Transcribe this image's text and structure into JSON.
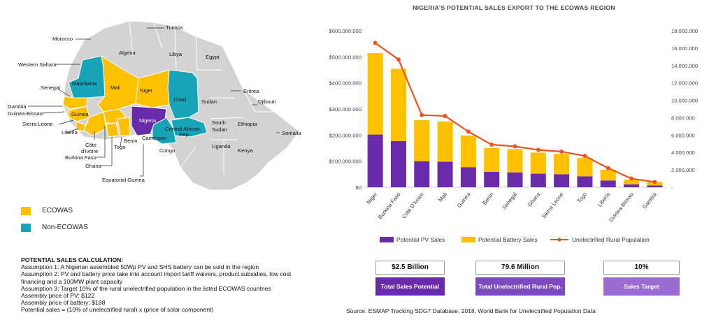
{
  "map": {
    "countries": {
      "morocco": "Morocco",
      "tunisia": "Tunisia",
      "algeria": "Algeria",
      "libya": "Libya",
      "egypt": "Egypt",
      "western_sahara": "Western Sahara",
      "mauritania": "Mauritania",
      "mali": "Mali",
      "niger": "Niger",
      "chad": "Chad",
      "sudan": "Sudan",
      "eritrea": "Eritrea",
      "djibouti": "Djibouti",
      "senegal": "Senegal",
      "gambia": "Gambia",
      "guinea_bissau": "Guinea-Bissau",
      "guinea": "Guinea",
      "sierra_leone": "Sierra Leone",
      "liberia": "Liberia",
      "cote_divoire": "Côte\nd'Ivoire",
      "burkina_faso": "Burkina Faso",
      "ghana": "Ghana",
      "togo": "Togo",
      "benin": "Benin",
      "nigeria": "Nigeria",
      "central_african_rep": "Central African\nRep.",
      "south_sudan": "South\nSudan",
      "ethiopia": "Ethiopia",
      "somalia": "Somalia",
      "cameroon": "Cameroon",
      "congo": "Congo",
      "uganda": "Uganda",
      "kenya": "Kenya",
      "equatorial_guinea": "Equatorial Guinea"
    },
    "legend": [
      {
        "label": "ECOWAS",
        "color": "#FFC000"
      },
      {
        "label": "Non-ECOWAS",
        "color": "#18A4B8"
      }
    ],
    "colors": {
      "ecowas": "#FFC000",
      "non_ecowas": "#18A4B8",
      "nigeria": "#6A2BAA",
      "other": "#D3D3D3"
    }
  },
  "calculation": {
    "title": "POTENTIAL SALES CALCULATION:",
    "lines": [
      "Assumption 1: A Nigerian assembled 50Wp PV and SHS battery can be sold in the region",
      "Assumption 2: PV and battery price take into account import tariff waivers, product subsidies, low cost financing and a 100MW plant capacity",
      "Assumption 3: Target 10% of the rural unelectrified population in the listed ECOWAS countries",
      "Assembly price of PV: $122",
      "Assembly price of battery: $188",
      "Potential sales = (10% of unelectrified rural) x (price of solar component)"
    ]
  },
  "chart_data": {
    "type": "bar",
    "stacked": true,
    "title": "NIGERIA'S POTENTIAL SALES EXPORT TO THE ECOWAS REGION",
    "categories": [
      "Niger",
      "Burkina Faso",
      "Cote D'Ivoire",
      "Mali",
      "Guinea",
      "Benin",
      "Senegal",
      "Ghana",
      "Sierra Leone",
      "Togo",
      "Liberia",
      "Guinea-Bissau",
      "Gambia"
    ],
    "series": [
      {
        "name": "Potential PV Sales",
        "axis": "left",
        "color": "#6A2BAA",
        "values": [
          202000000,
          177000000,
          100000000,
          98000000,
          77000000,
          59000000,
          57000000,
          52000000,
          50000000,
          42000000,
          26000000,
          11000000,
          7000000
        ]
      },
      {
        "name": "Potential Battery Sales",
        "axis": "left",
        "color": "#FFC000",
        "values": [
          312000000,
          277000000,
          157000000,
          154000000,
          121000000,
          92000000,
          89000000,
          81000000,
          78000000,
          70000000,
          41000000,
          18000000,
          13000000
        ]
      },
      {
        "name": "Unelectrified Rural Population",
        "axis": "right",
        "type": "line",
        "color": "#F0521E",
        "values": [
          16600000,
          14700000,
          8300000,
          8200000,
          6400000,
          4900000,
          4700000,
          4300000,
          4100000,
          3600000,
          2200000,
          1000000,
          600000
        ]
      }
    ],
    "y_left": {
      "min": 0,
      "max": 600000000,
      "ticks": [
        "$0",
        "$100.000.000",
        "$200.000.000",
        "$300.000.000",
        "$400.000.000",
        "$500.000.000",
        "$600.000.000"
      ]
    },
    "y_right": {
      "min": 0,
      "max": 18000000,
      "ticks": [
        "-",
        "2.000.000",
        "4.000.000",
        "6.000.000",
        "8.000.000",
        "10.000.000",
        "12.000.000",
        "14.000.000",
        "16.000.000",
        "18.000.000"
      ]
    },
    "grid": false,
    "legend_position": "bottom"
  },
  "stats": [
    {
      "value": "$2.5 Billion",
      "label": "Total Sales Potential",
      "color": "#6A2BAA"
    },
    {
      "value": "79.6 Million",
      "label": "Total Unelectrified Rural Pop.",
      "color": "#7B4BBE"
    },
    {
      "value": "10%",
      "label": "Sales Target",
      "color": "#9A6BD0"
    }
  ],
  "source": "Source: ESMAP Tracking SDG7 Database, 2018, World Bank for Unelectrified Population Data"
}
